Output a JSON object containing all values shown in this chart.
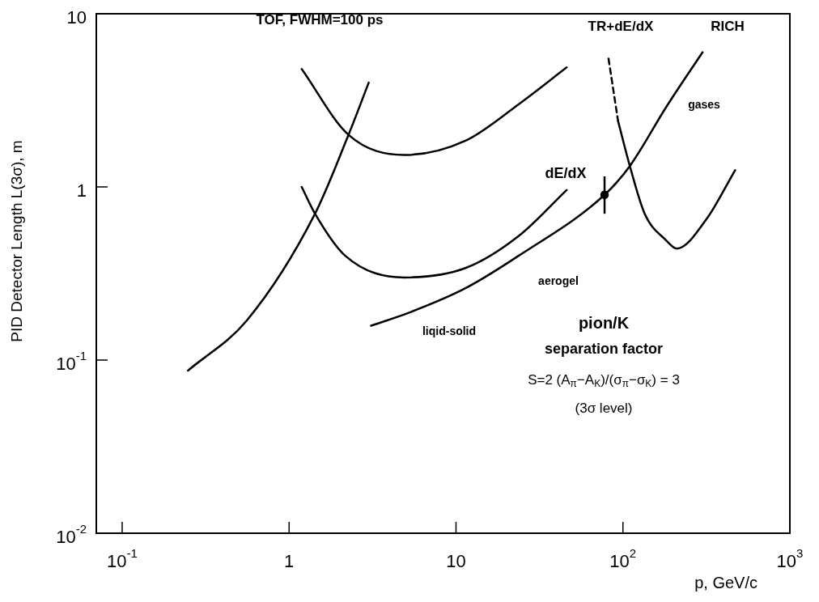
{
  "chart_data": {
    "type": "line",
    "xlabel": "p, GeV/c",
    "ylabel": "PID Detector Length L(3σ), m",
    "log": "xy",
    "xlim": [
      0.07,
      1000
    ],
    "ylim": [
      0.01,
      10
    ],
    "xticks": [
      {
        "value": 0.1,
        "label": "10$^{-1}$"
      },
      1,
      10,
      {
        "value": 100,
        "label": "10$^{2}$"
      },
      {
        "value": 1000,
        "label": "10$^{3}$"
      }
    ],
    "yticks": [
      {
        "value": 0.01,
        "label": "10$^{-2}$"
      },
      {
        "value": 0.1,
        "label": "10$^{-1}$"
      },
      1,
      10
    ],
    "grid": false,
    "legend": false,
    "marker": "none",
    "line_style": "solid",
    "series": [
      {
        "color": "#000000",
        "x": [
          0.248,
          0.56,
          1.43,
          2.27,
          3.0
        ],
        "values": [
          0.087,
          0.17,
          0.7,
          2.0,
          4.0
        ]
      },
      {
        "color": "#000000",
        "x": [
          1.19,
          2.27,
          4.9,
          11.4,
          23.7,
          46
        ],
        "values": [
          4.8,
          2.0,
          1.53,
          1.85,
          3.0,
          4.9
        ]
      },
      {
        "color": "#000000",
        "x": [
          1.19,
          1.43,
          2.17,
          4.9,
          11.4,
          23.7,
          46
        ],
        "values": [
          1.0,
          0.7,
          0.4,
          0.3,
          0.34,
          0.52,
          0.96
        ]
      },
      {
        "color": "#000000",
        "x": [
          3.1,
          5.4,
          11.4,
          23.7,
          77.6,
          110,
          182,
          300
        ],
        "values": [
          0.158,
          0.19,
          0.26,
          0.4,
          0.9,
          1.32,
          2.9,
          6.0
        ]
      },
      {
        "color": "#000000",
        "line_style": "dashed",
        "x": [
          82,
          93.5
        ],
        "values": [
          5.5,
          2.4
        ]
      },
      {
        "color": "#000000",
        "x": [
          93.5,
          110,
          135,
          182,
          210,
          316,
          470
        ],
        "values": [
          2.4,
          1.32,
          0.7,
          0.49,
          0.44,
          0.65,
          1.25
        ]
      },
      {
        "type": "scatter",
        "color": "#000000",
        "marker": "circle",
        "x": [
          77.6
        ],
        "values": [
          0.9
        ],
        "errors": [
          [
            0.7,
            1.15
          ]
        ]
      }
    ],
    "annotations": [
      "TOF, FWHM=100 ps",
      "TR+dE/dX",
      "RICH",
      "gases",
      "dE/dX",
      "aerogel",
      "liqid-solid",
      "pion/K",
      "separation factor",
      "S=2 (A$_{π}$−A$_{K}$)/(σ$_{π}$−σ$_{K}$) = 3",
      "(3σ level)"
    ]
  }
}
